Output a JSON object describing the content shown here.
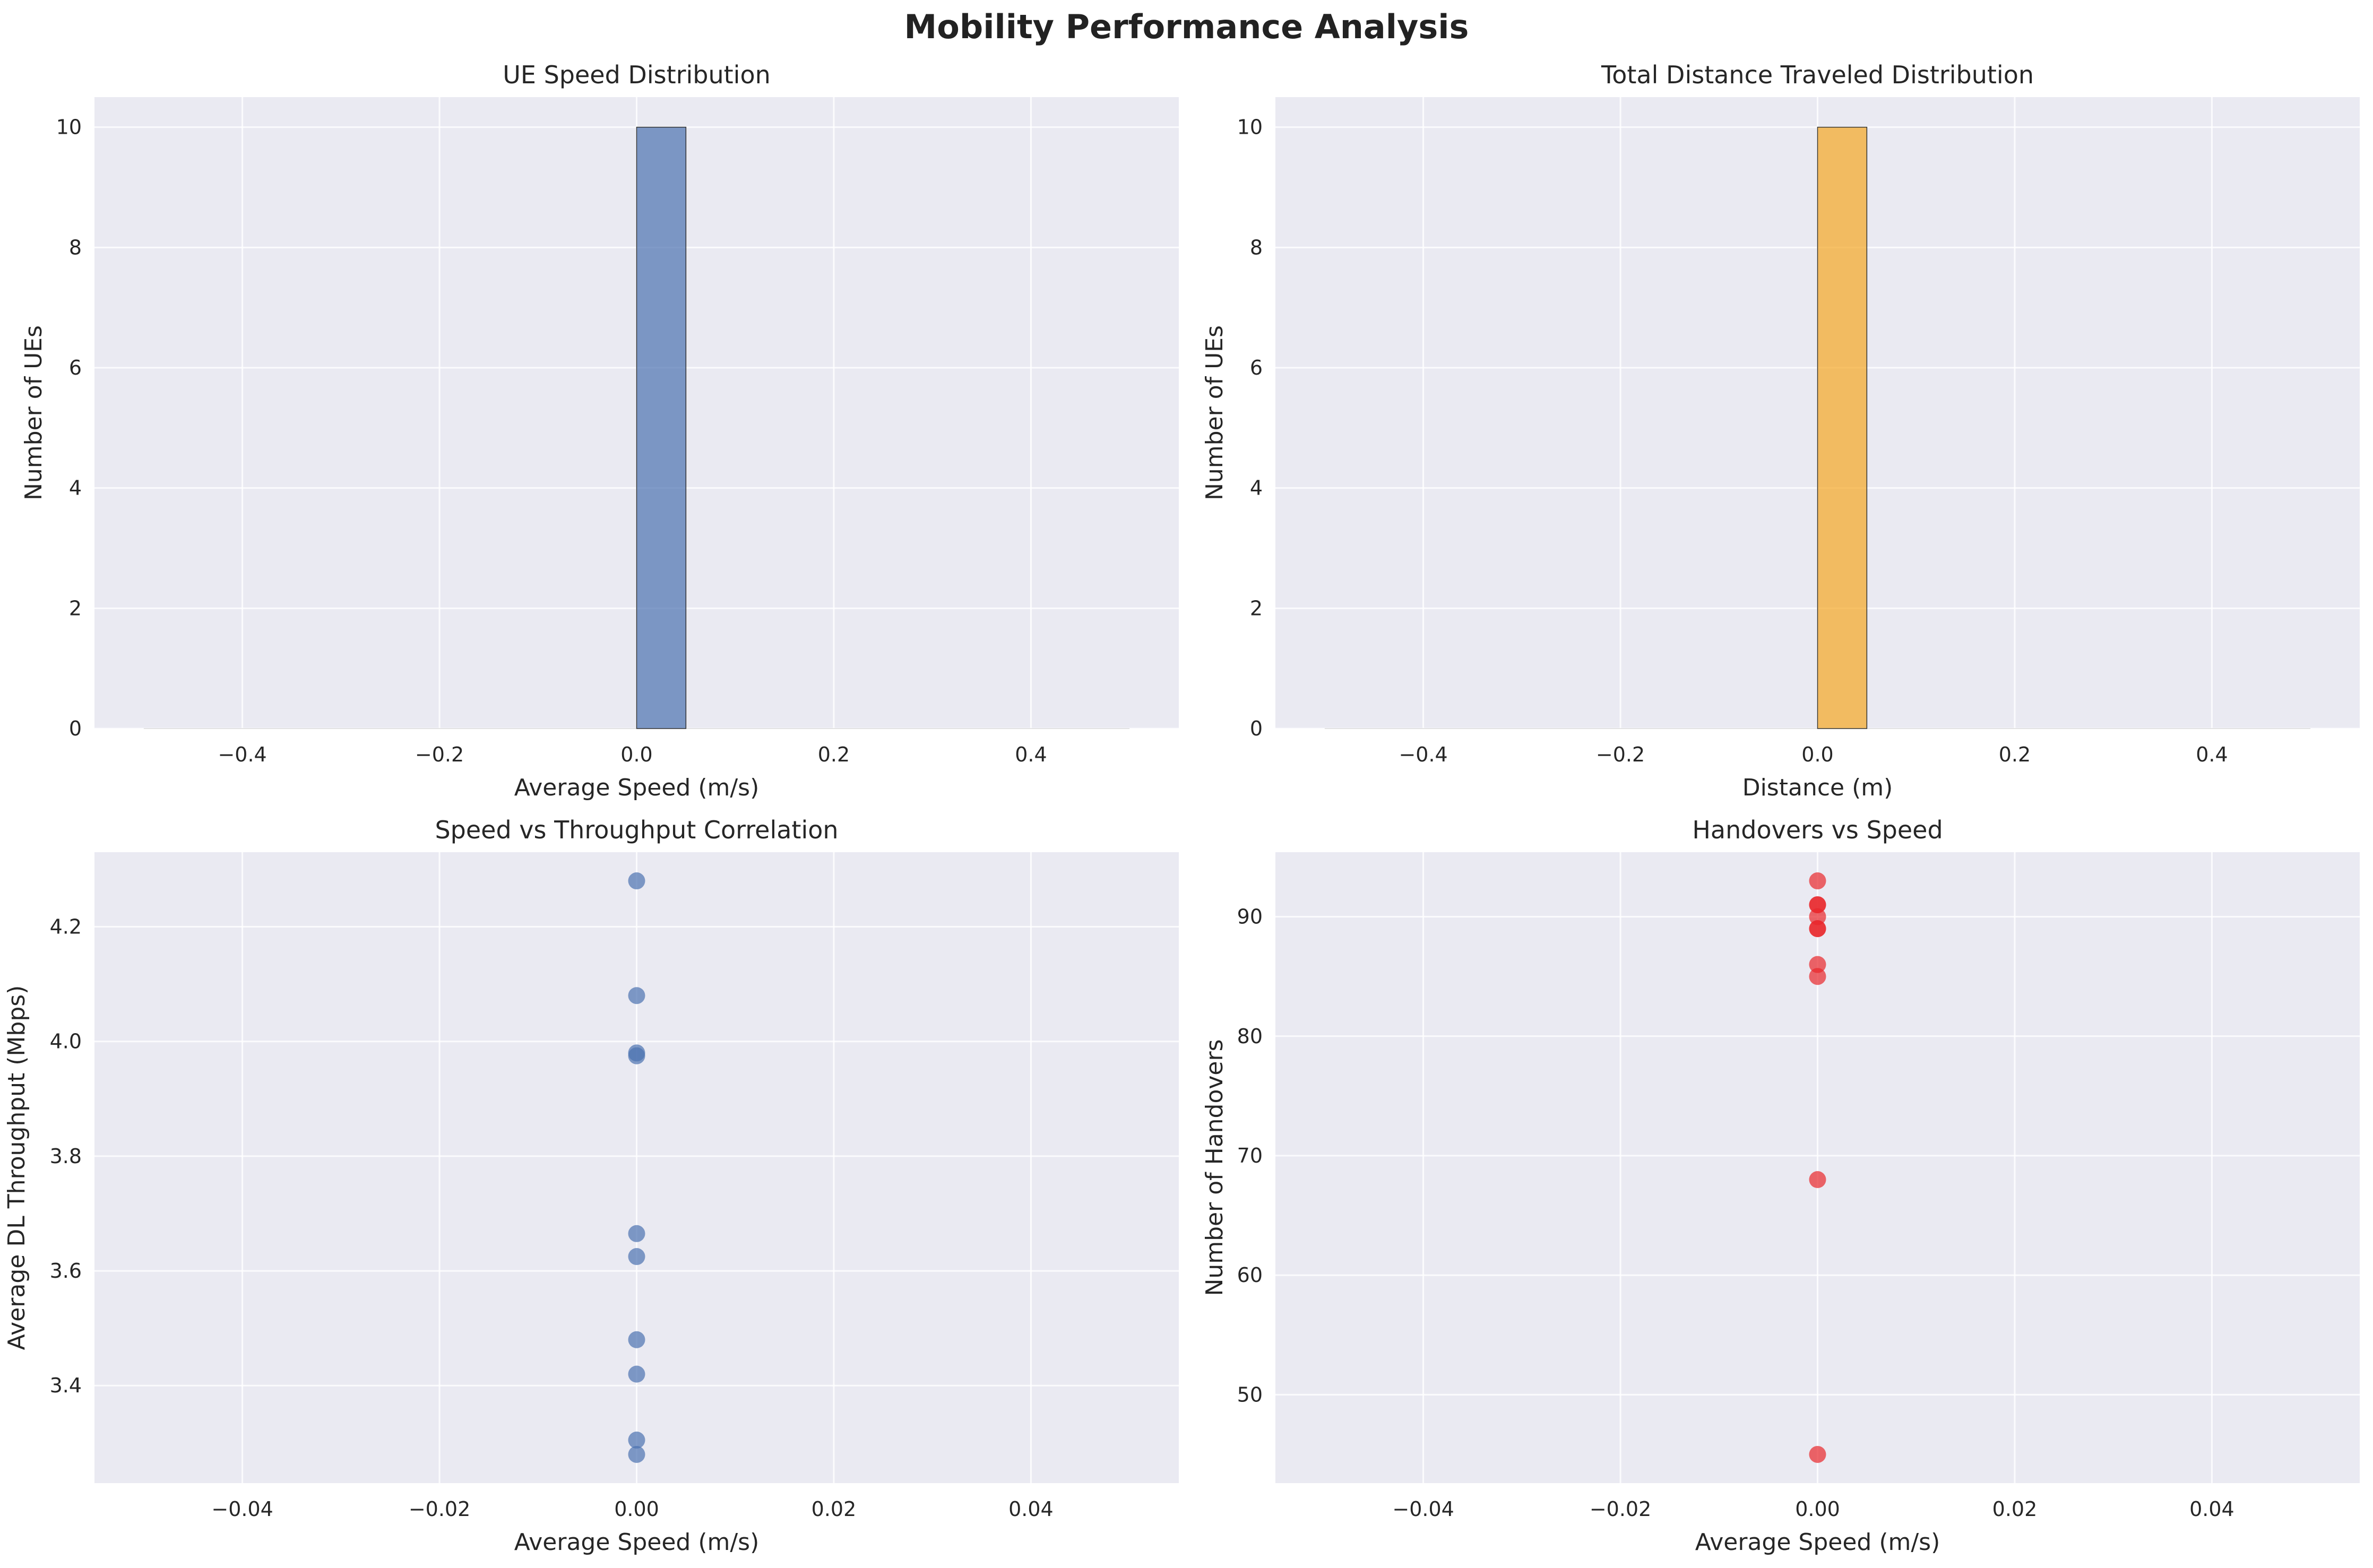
{
  "figure": {
    "title": "Mobility Performance Analysis"
  },
  "colors": {
    "background": "#EAEAF2",
    "grid": "#FFFFFF",
    "blue": "#4C72B0",
    "orange": "#F5A623",
    "red": "#E8262B"
  },
  "chart_data": [
    {
      "type": "bar",
      "title": "UE Speed Distribution",
      "xlabel": "Average Speed (m/s)",
      "ylabel": "Number of UEs",
      "xlim": [
        -0.55,
        0.55
      ],
      "ylim": [
        0,
        10.5
      ],
      "xticks": [
        -0.4,
        -0.2,
        0.0,
        0.2,
        0.4
      ],
      "xtick_labels": [
        "−0.4",
        "−0.2",
        "0.0",
        "0.2",
        "0.4"
      ],
      "yticks": [
        0,
        2,
        4,
        6,
        8,
        10
      ],
      "ytick_labels": [
        "0",
        "2",
        "4",
        "6",
        "8",
        "10"
      ],
      "bins": [
        {
          "x0": 0.0,
          "x1": 0.05,
          "count": 10
        }
      ],
      "color": "#4C72B0",
      "grid": true
    },
    {
      "type": "bar",
      "title": "Total Distance Traveled Distribution",
      "xlabel": "Distance (m)",
      "ylabel": "Number of UEs",
      "xlim": [
        -0.55,
        0.55
      ],
      "ylim": [
        0,
        10.5
      ],
      "xticks": [
        -0.4,
        -0.2,
        0.0,
        0.2,
        0.4
      ],
      "xtick_labels": [
        "−0.4",
        "−0.2",
        "0.0",
        "0.2",
        "0.4"
      ],
      "yticks": [
        0,
        2,
        4,
        6,
        8,
        10
      ],
      "ytick_labels": [
        "0",
        "2",
        "4",
        "6",
        "8",
        "10"
      ],
      "bins": [
        {
          "x0": 0.0,
          "x1": 0.05,
          "count": 10
        }
      ],
      "color": "#F5A623",
      "grid": true
    },
    {
      "type": "scatter",
      "title": "Speed vs Throughput Correlation",
      "xlabel": "Average Speed (m/s)",
      "ylabel": "Average DL Throughput (Mbps)",
      "xlim": [
        -0.055,
        0.055
      ],
      "ylim": [
        3.23,
        4.33
      ],
      "xticks": [
        -0.04,
        -0.02,
        0.0,
        0.02,
        0.04
      ],
      "xtick_labels": [
        "−0.04",
        "−0.02",
        "0.00",
        "0.02",
        "0.04"
      ],
      "yticks": [
        3.4,
        3.6,
        3.8,
        4.0,
        4.2
      ],
      "ytick_labels": [
        "3.4",
        "3.6",
        "3.8",
        "4.0",
        "4.2"
      ],
      "x": [
        0,
        0,
        0,
        0,
        0,
        0,
        0,
        0,
        0,
        0
      ],
      "y": [
        4.28,
        4.08,
        3.98,
        3.975,
        3.665,
        3.625,
        3.48,
        3.42,
        3.305,
        3.28
      ],
      "color": "#4C72B0",
      "grid": true
    },
    {
      "type": "scatter",
      "title": "Handovers vs Speed",
      "xlabel": "Average Speed (m/s)",
      "ylabel": "Number of Handovers",
      "xlim": [
        -0.055,
        0.055
      ],
      "ylim": [
        42.6,
        95.4
      ],
      "xticks": [
        -0.04,
        -0.02,
        0.0,
        0.02,
        0.04
      ],
      "xtick_labels": [
        "−0.04",
        "−0.02",
        "0.00",
        "0.02",
        "0.04"
      ],
      "yticks": [
        50,
        60,
        70,
        80,
        90
      ],
      "ytick_labels": [
        "50",
        "60",
        "70",
        "80",
        "90"
      ],
      "x": [
        0,
        0,
        0,
        0,
        0,
        0,
        0,
        0,
        0,
        0
      ],
      "y": [
        93,
        91,
        91,
        90,
        89,
        89,
        86,
        85,
        68,
        45
      ],
      "color": "#E8262B",
      "grid": true
    }
  ]
}
